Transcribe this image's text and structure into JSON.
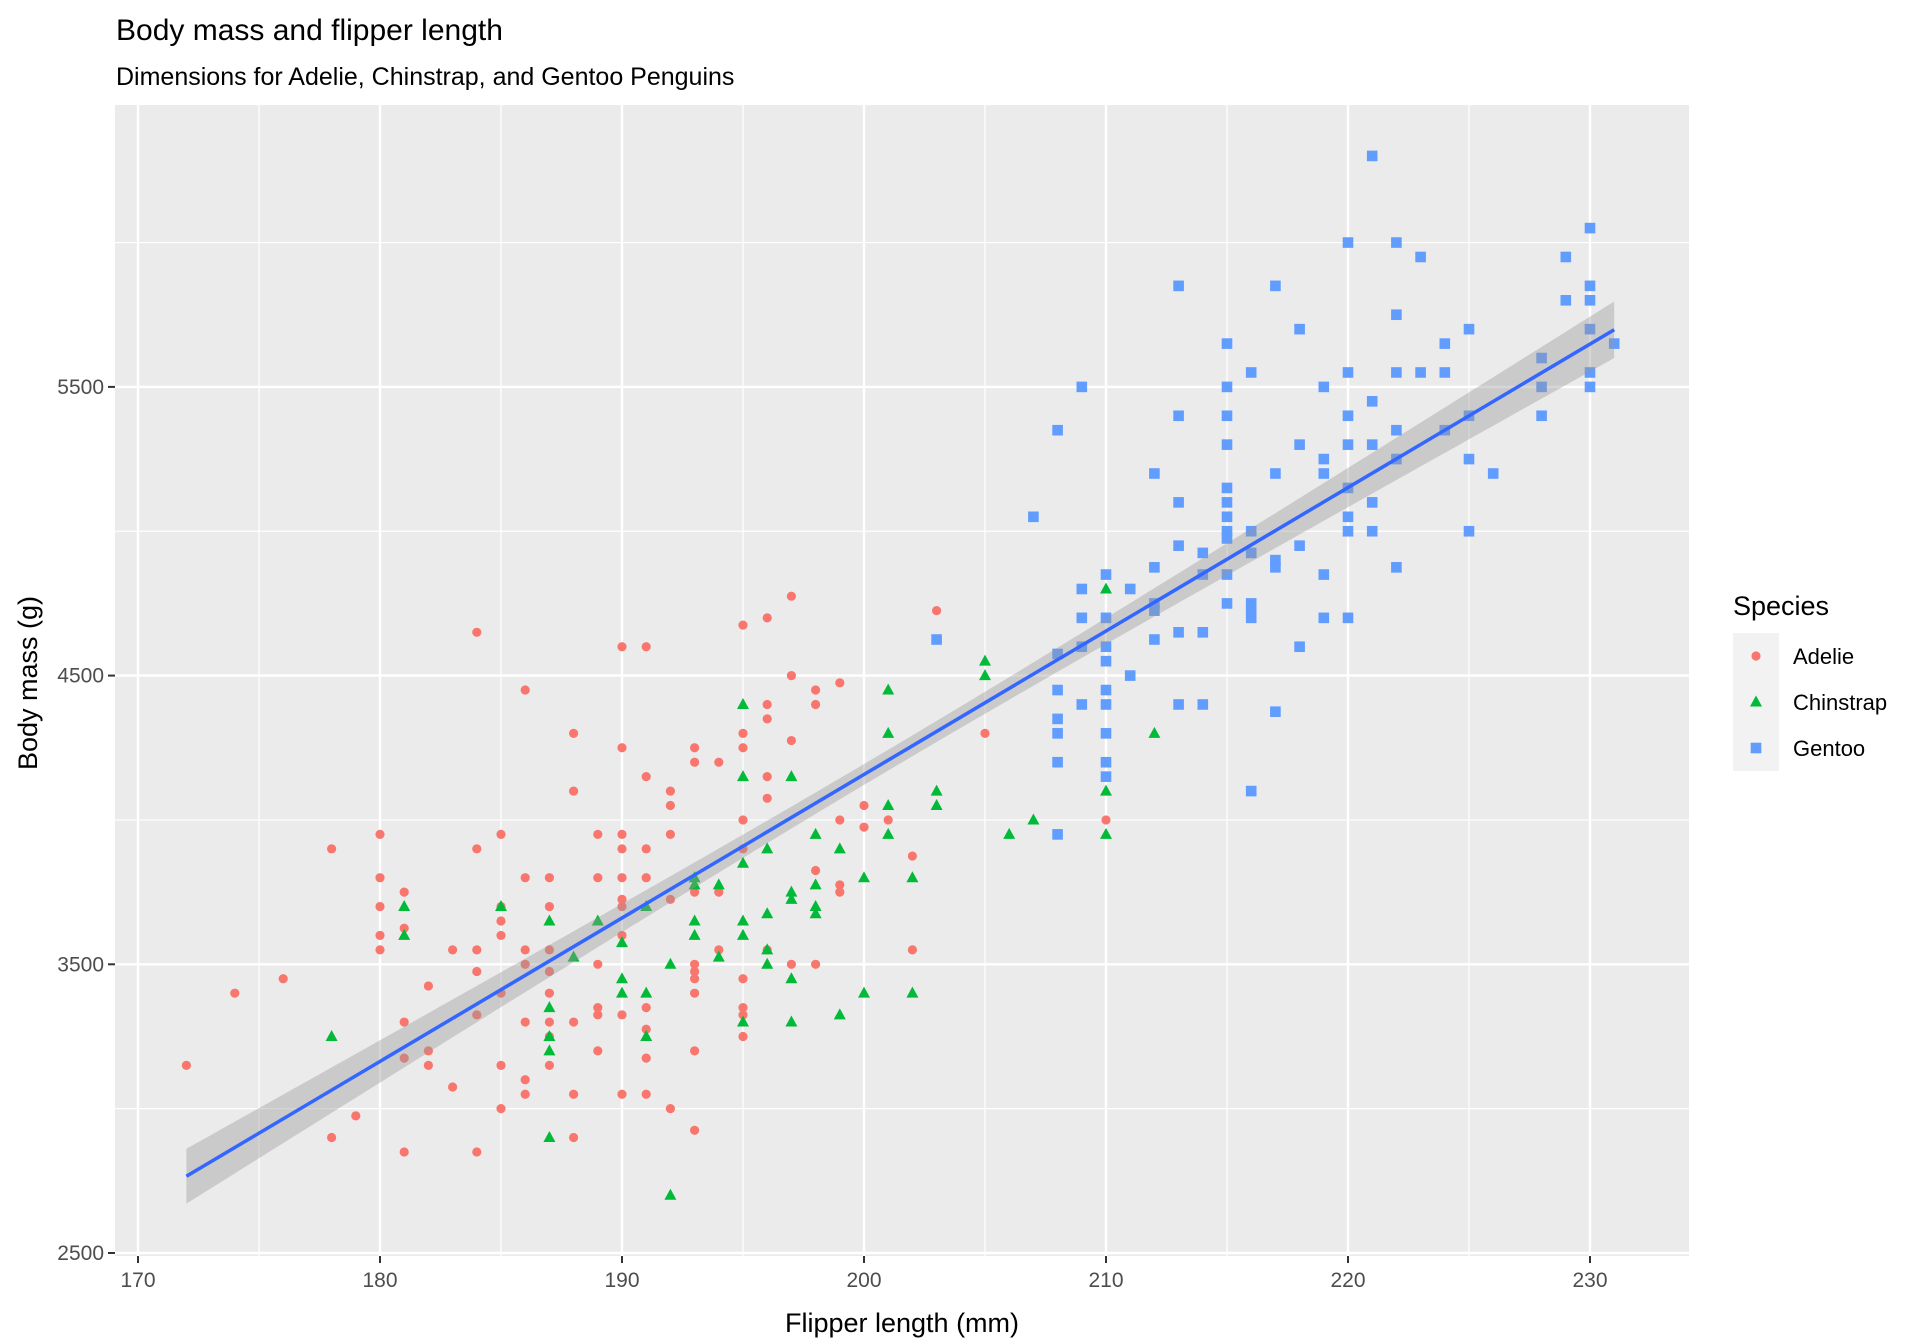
{
  "chart_data": {
    "type": "scatter",
    "title": "Body mass and flipper length",
    "subtitle": "Dimensions for Adelie, Chinstrap, and Gentoo Penguins",
    "xlabel": "Flipper length (mm)",
    "ylabel": "Body mass (g)",
    "xlim": [
      169,
      234
    ],
    "ylim": [
      2490,
      6500
    ],
    "x_ticks": [
      170,
      180,
      190,
      200,
      210,
      220,
      230
    ],
    "y_ticks": [
      2500,
      3500,
      4500,
      5500
    ],
    "grid": true,
    "legend": {
      "title": "Species",
      "position": "right"
    },
    "series": [
      {
        "name": "Adelie",
        "color": "#F8766D",
        "shape": "circle",
        "points": [
          [
            172,
            3150
          ],
          [
            174,
            3400
          ],
          [
            176,
            3450
          ],
          [
            178,
            3900
          ],
          [
            178,
            2900
          ],
          [
            179,
            2975
          ],
          [
            180,
            3950
          ],
          [
            180,
            3800
          ],
          [
            180,
            3700
          ],
          [
            180,
            3600
          ],
          [
            180,
            3550
          ],
          [
            181,
            3750
          ],
          [
            181,
            3625
          ],
          [
            181,
            3300
          ],
          [
            181,
            3175
          ],
          [
            181,
            2850
          ],
          [
            182,
            3425
          ],
          [
            182,
            3200
          ],
          [
            182,
            3150
          ],
          [
            183,
            3550
          ],
          [
            183,
            3075
          ],
          [
            184,
            4650
          ],
          [
            184,
            3900
          ],
          [
            184,
            3550
          ],
          [
            184,
            3475
          ],
          [
            184,
            3325
          ],
          [
            184,
            2850
          ],
          [
            185,
            3950
          ],
          [
            185,
            3700
          ],
          [
            185,
            3650
          ],
          [
            185,
            3600
          ],
          [
            185,
            3400
          ],
          [
            185,
            3150
          ],
          [
            185,
            3000
          ],
          [
            186,
            4450
          ],
          [
            186,
            3800
          ],
          [
            186,
            3550
          ],
          [
            186,
            3500
          ],
          [
            186,
            3300
          ],
          [
            186,
            3100
          ],
          [
            186,
            3050
          ],
          [
            187,
            3800
          ],
          [
            187,
            3700
          ],
          [
            187,
            3550
          ],
          [
            187,
            3475
          ],
          [
            187,
            3400
          ],
          [
            187,
            3300
          ],
          [
            187,
            3250
          ],
          [
            187,
            3150
          ],
          [
            188,
            4300
          ],
          [
            188,
            4100
          ],
          [
            188,
            3300
          ],
          [
            188,
            3050
          ],
          [
            188,
            2900
          ],
          [
            189,
            3950
          ],
          [
            189,
            3800
          ],
          [
            189,
            3500
          ],
          [
            189,
            3350
          ],
          [
            189,
            3325
          ],
          [
            189,
            3200
          ],
          [
            190,
            4600
          ],
          [
            190,
            4250
          ],
          [
            190,
            3950
          ],
          [
            190,
            3900
          ],
          [
            190,
            3800
          ],
          [
            190,
            3725
          ],
          [
            190,
            3700
          ],
          [
            190,
            3600
          ],
          [
            190,
            3325
          ],
          [
            190,
            3050
          ],
          [
            191,
            4600
          ],
          [
            191,
            4150
          ],
          [
            191,
            3900
          ],
          [
            191,
            3800
          ],
          [
            191,
            3350
          ],
          [
            191,
            3275
          ],
          [
            191,
            3175
          ],
          [
            191,
            3050
          ],
          [
            192,
            4100
          ],
          [
            192,
            4050
          ],
          [
            192,
            3950
          ],
          [
            192,
            3725
          ],
          [
            192,
            3000
          ],
          [
            193,
            4250
          ],
          [
            193,
            4200
          ],
          [
            193,
            3750
          ],
          [
            193,
            3500
          ],
          [
            193,
            3475
          ],
          [
            193,
            3450
          ],
          [
            193,
            3400
          ],
          [
            193,
            3200
          ],
          [
            193,
            2925
          ],
          [
            194,
            4200
          ],
          [
            194,
            3750
          ],
          [
            194,
            3550
          ],
          [
            195,
            4675
          ],
          [
            195,
            4300
          ],
          [
            195,
            4250
          ],
          [
            195,
            4000
          ],
          [
            195,
            3900
          ],
          [
            195,
            3450
          ],
          [
            195,
            3350
          ],
          [
            195,
            3325
          ],
          [
            195,
            3250
          ],
          [
            196,
            4700
          ],
          [
            196,
            4400
          ],
          [
            196,
            4350
          ],
          [
            196,
            4150
          ],
          [
            196,
            4075
          ],
          [
            196,
            3550
          ],
          [
            197,
            4775
          ],
          [
            197,
            4500
          ],
          [
            197,
            4275
          ],
          [
            197,
            3500
          ],
          [
            198,
            4450
          ],
          [
            198,
            4400
          ],
          [
            198,
            3825
          ],
          [
            198,
            3500
          ],
          [
            199,
            4475
          ],
          [
            199,
            4000
          ],
          [
            199,
            3775
          ],
          [
            199,
            3750
          ],
          [
            200,
            4050
          ],
          [
            200,
            3975
          ],
          [
            201,
            4000
          ],
          [
            202,
            3875
          ],
          [
            202,
            3550
          ],
          [
            203,
            4725
          ],
          [
            205,
            4300
          ],
          [
            210,
            4000
          ]
        ]
      },
      {
        "name": "Chinstrap",
        "color": "#00BA38",
        "shape": "triangle",
        "points": [
          [
            178,
            3250
          ],
          [
            181,
            3700
          ],
          [
            181,
            3600
          ],
          [
            185,
            3700
          ],
          [
            187,
            3650
          ],
          [
            187,
            3350
          ],
          [
            187,
            3250
          ],
          [
            187,
            3200
          ],
          [
            187,
            2900
          ],
          [
            188,
            3525
          ],
          [
            189,
            3650
          ],
          [
            190,
            3575
          ],
          [
            190,
            3450
          ],
          [
            190,
            3400
          ],
          [
            191,
            3700
          ],
          [
            191,
            3400
          ],
          [
            191,
            3250
          ],
          [
            192,
            3500
          ],
          [
            192,
            2700
          ],
          [
            193,
            3800
          ],
          [
            193,
            3775
          ],
          [
            193,
            3650
          ],
          [
            193,
            3600
          ],
          [
            194,
            3775
          ],
          [
            194,
            3525
          ],
          [
            195,
            4400
          ],
          [
            195,
            4150
          ],
          [
            195,
            3850
          ],
          [
            195,
            3650
          ],
          [
            195,
            3600
          ],
          [
            195,
            3300
          ],
          [
            196,
            3900
          ],
          [
            196,
            3675
          ],
          [
            196,
            3550
          ],
          [
            196,
            3500
          ],
          [
            197,
            4150
          ],
          [
            197,
            3750
          ],
          [
            197,
            3725
          ],
          [
            197,
            3450
          ],
          [
            197,
            3300
          ],
          [
            198,
            3950
          ],
          [
            198,
            3775
          ],
          [
            198,
            3700
          ],
          [
            198,
            3675
          ],
          [
            199,
            3900
          ],
          [
            199,
            3325
          ],
          [
            200,
            3800
          ],
          [
            200,
            3400
          ],
          [
            201,
            4450
          ],
          [
            201,
            4300
          ],
          [
            201,
            4050
          ],
          [
            201,
            3950
          ],
          [
            202,
            3800
          ],
          [
            202,
            3400
          ],
          [
            203,
            4100
          ],
          [
            203,
            4050
          ],
          [
            205,
            4550
          ],
          [
            205,
            4500
          ],
          [
            206,
            3950
          ],
          [
            207,
            4000
          ],
          [
            210,
            4800
          ],
          [
            210,
            4100
          ],
          [
            210,
            3950
          ],
          [
            212,
            4300
          ]
        ]
      },
      {
        "name": "Gentoo",
        "color": "#619CFF",
        "shape": "square",
        "points": [
          [
            203,
            4625
          ],
          [
            207,
            5050
          ],
          [
            208,
            5350
          ],
          [
            208,
            4575
          ],
          [
            208,
            4450
          ],
          [
            208,
            4350
          ],
          [
            208,
            4300
          ],
          [
            208,
            4200
          ],
          [
            208,
            3950
          ],
          [
            209,
            5500
          ],
          [
            209,
            4800
          ],
          [
            209,
            4700
          ],
          [
            209,
            4600
          ],
          [
            209,
            4400
          ],
          [
            210,
            4850
          ],
          [
            210,
            4700
          ],
          [
            210,
            4600
          ],
          [
            210,
            4550
          ],
          [
            210,
            4450
          ],
          [
            210,
            4400
          ],
          [
            210,
            4300
          ],
          [
            210,
            4200
          ],
          [
            210,
            4150
          ],
          [
            211,
            4800
          ],
          [
            211,
            4500
          ],
          [
            212,
            5200
          ],
          [
            212,
            4875
          ],
          [
            212,
            4750
          ],
          [
            212,
            4725
          ],
          [
            212,
            4625
          ],
          [
            213,
            5850
          ],
          [
            213,
            5400
          ],
          [
            213,
            5100
          ],
          [
            213,
            4950
          ],
          [
            213,
            4650
          ],
          [
            213,
            4400
          ],
          [
            214,
            4925
          ],
          [
            214,
            4850
          ],
          [
            214,
            4650
          ],
          [
            214,
            4400
          ],
          [
            215,
            5650
          ],
          [
            215,
            5500
          ],
          [
            215,
            5400
          ],
          [
            215,
            5300
          ],
          [
            215,
            5150
          ],
          [
            215,
            5100
          ],
          [
            215,
            5050
          ],
          [
            215,
            5000
          ],
          [
            215,
            4975
          ],
          [
            215,
            4850
          ],
          [
            215,
            4750
          ],
          [
            216,
            5550
          ],
          [
            216,
            5000
          ],
          [
            216,
            4925
          ],
          [
            216,
            4750
          ],
          [
            216,
            4725
          ],
          [
            216,
            4700
          ],
          [
            216,
            4100
          ],
          [
            217,
            5850
          ],
          [
            217,
            5200
          ],
          [
            217,
            4900
          ],
          [
            217,
            4875
          ],
          [
            217,
            4375
          ],
          [
            218,
            5700
          ],
          [
            218,
            5300
          ],
          [
            218,
            4950
          ],
          [
            218,
            4600
          ],
          [
            219,
            5500
          ],
          [
            219,
            5250
          ],
          [
            219,
            5200
          ],
          [
            219,
            4850
          ],
          [
            219,
            4700
          ],
          [
            220,
            6000
          ],
          [
            220,
            5550
          ],
          [
            220,
            5400
          ],
          [
            220,
            5300
          ],
          [
            220,
            5150
          ],
          [
            220,
            5050
          ],
          [
            220,
            5000
          ],
          [
            220,
            4700
          ],
          [
            221,
            6300
          ],
          [
            221,
            5450
          ],
          [
            221,
            5300
          ],
          [
            221,
            5100
          ],
          [
            221,
            5000
          ],
          [
            222,
            6000
          ],
          [
            222,
            5750
          ],
          [
            222,
            5550
          ],
          [
            222,
            5350
          ],
          [
            222,
            5250
          ],
          [
            222,
            4875
          ],
          [
            223,
            5950
          ],
          [
            223,
            5550
          ],
          [
            224,
            5650
          ],
          [
            224,
            5550
          ],
          [
            224,
            5350
          ],
          [
            225,
            5700
          ],
          [
            225,
            5400
          ],
          [
            225,
            5250
          ],
          [
            225,
            5000
          ],
          [
            226,
            5200
          ],
          [
            228,
            5600
          ],
          [
            228,
            5500
          ],
          [
            228,
            5400
          ],
          [
            229,
            5950
          ],
          [
            229,
            5800
          ],
          [
            230,
            6050
          ],
          [
            230,
            5850
          ],
          [
            230,
            5800
          ],
          [
            230,
            5700
          ],
          [
            230,
            5550
          ],
          [
            230,
            5500
          ],
          [
            231,
            5650
          ]
        ]
      }
    ],
    "smooth": {
      "method": "lm",
      "se": true,
      "color": "#3366FF",
      "x": [
        172,
        231
      ],
      "y": [
        2766,
        5698
      ]
    }
  }
}
